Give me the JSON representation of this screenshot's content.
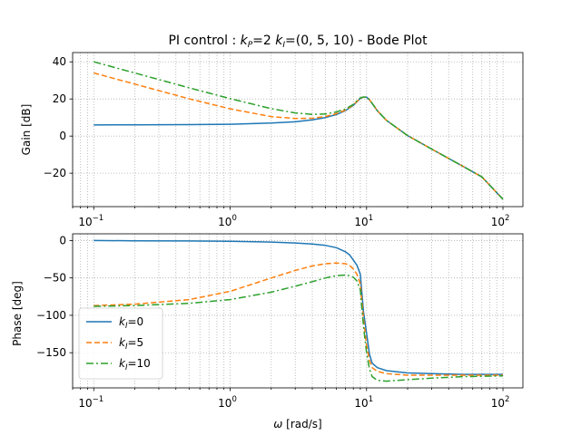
{
  "chart_data": [
    {
      "type": "line",
      "title_parts": {
        "prefix": "PI control : ",
        "kp_sym": "k",
        "kp_sub": "P",
        "kp_val": "=2  ",
        "ki_sym": "k",
        "ki_sub": "I",
        "ki_val": "=(0, 5, 10) - Bode Plot"
      },
      "xlabel": "",
      "ylabel": "Gain [dB]",
      "xscale": "log",
      "xlim": [
        0.07,
        140
      ],
      "ylim": [
        -38,
        45
      ],
      "grid": true,
      "xticks": [
        {
          "value": 0.1,
          "base": "10",
          "exp": "−1"
        },
        {
          "value": 1,
          "base": "10",
          "exp": "0"
        },
        {
          "value": 10,
          "base": "10",
          "exp": "1"
        },
        {
          "value": 100,
          "base": "10",
          "exp": "2"
        }
      ],
      "yticks": [
        {
          "value": 40,
          "label": "40"
        },
        {
          "value": 20,
          "label": "20"
        },
        {
          "value": 0,
          "label": "0"
        },
        {
          "value": -20,
          "label": "−20"
        }
      ],
      "x": [
        0.1,
        0.2,
        0.5,
        1,
        2,
        3,
        4,
        5,
        6,
        7,
        8,
        9,
        9.5,
        10,
        10.5,
        11,
        12,
        14,
        20,
        30,
        50,
        70,
        100
      ],
      "series": [
        {
          "name": "k_I=0",
          "color": "#1f77b4",
          "dash": "solid",
          "values": [
            6.0,
            6.1,
            6.2,
            6.4,
            7.0,
            7.7,
            8.7,
            10.0,
            11.6,
            13.7,
            16.6,
            20.3,
            21.0,
            21.0,
            19.5,
            17.5,
            13.6,
            8.5,
            0.3,
            -7.0,
            -16.0,
            -22.0,
            -34.0
          ]
        },
        {
          "name": "k_I=5",
          "color": "#ff7f0e",
          "dash": "6,3",
          "values": [
            34.0,
            28.0,
            20.1,
            14.7,
            10.5,
            9.5,
            9.6,
            10.6,
            12.1,
            14.0,
            16.8,
            20.4,
            21.0,
            21.0,
            19.6,
            17.6,
            13.7,
            8.5,
            0.3,
            -7.0,
            -16.0,
            -22.0,
            -34.0
          ]
        },
        {
          "name": "k_I=10",
          "color": "#2ca02c",
          "dash": "8,3,2,3",
          "values": [
            40.0,
            34.0,
            26.0,
            20.2,
            14.8,
            12.5,
            11.7,
            11.9,
            13.0,
            14.6,
            17.1,
            20.6,
            21.1,
            21.0,
            19.6,
            17.6,
            13.7,
            8.5,
            0.3,
            -7.0,
            -16.0,
            -22.0,
            -34.0
          ]
        }
      ]
    },
    {
      "type": "line",
      "xlabel_parts": {
        "sym": "ω",
        "rest": " [rad/s]"
      },
      "ylabel": "Phase [deg]",
      "xscale": "log",
      "xlim": [
        0.07,
        140
      ],
      "ylim": [
        -197,
        9
      ],
      "grid": true,
      "legend": "lower-left",
      "xticks": [
        {
          "value": 0.1,
          "base": "10",
          "exp": "−1"
        },
        {
          "value": 1,
          "base": "10",
          "exp": "0"
        },
        {
          "value": 10,
          "base": "10",
          "exp": "1"
        },
        {
          "value": 100,
          "base": "10",
          "exp": "2"
        }
      ],
      "yticks": [
        {
          "value": 0,
          "label": "0"
        },
        {
          "value": -50,
          "label": "−50"
        },
        {
          "value": -100,
          "label": "−100"
        },
        {
          "value": -150,
          "label": "−150"
        }
      ],
      "x": [
        0.1,
        0.2,
        0.5,
        1,
        2,
        3,
        4,
        5,
        6,
        7,
        7.5,
        8,
        8.5,
        9,
        9.5,
        10,
        10.5,
        11,
        12,
        14,
        20,
        30,
        50,
        100
      ],
      "series": [
        {
          "name": "k_I=0",
          "legend_sym": "k",
          "legend_sub": "I",
          "legend_val": "=0",
          "color": "#1f77b4",
          "dash": "solid",
          "values": [
            0,
            -0.3,
            -0.6,
            -1.0,
            -2.0,
            -3.2,
            -4.6,
            -6.5,
            -9.5,
            -15,
            -19,
            -26,
            -33,
            -45,
            -95,
            -124,
            -152,
            -164,
            -170,
            -174,
            -177,
            -178,
            -179,
            -179
          ]
        },
        {
          "name": "k_I=5",
          "legend_sym": "k",
          "legend_sub": "I",
          "legend_val": "=5",
          "color": "#ff7f0e",
          "dash": "6,3",
          "values": [
            -87,
            -85,
            -79,
            -68,
            -50,
            -40,
            -34,
            -31,
            -30,
            -31,
            -33,
            -38,
            -45,
            -58,
            -105,
            -140,
            -160,
            -170,
            -175,
            -178,
            -180,
            -180,
            -180,
            -180
          ]
        },
        {
          "name": "k_I=10",
          "legend_sym": "k",
          "legend_sub": "I",
          "legend_val": "=10",
          "color": "#2ca02c",
          "dash": "8,3,2,3",
          "values": [
            -88,
            -87,
            -84,
            -79,
            -69,
            -61,
            -55,
            -50,
            -47,
            -46,
            -47,
            -49,
            -54,
            -66,
            -115,
            -150,
            -172,
            -182,
            -187,
            -188,
            -186,
            -184,
            -182,
            -181
          ]
        }
      ]
    }
  ]
}
